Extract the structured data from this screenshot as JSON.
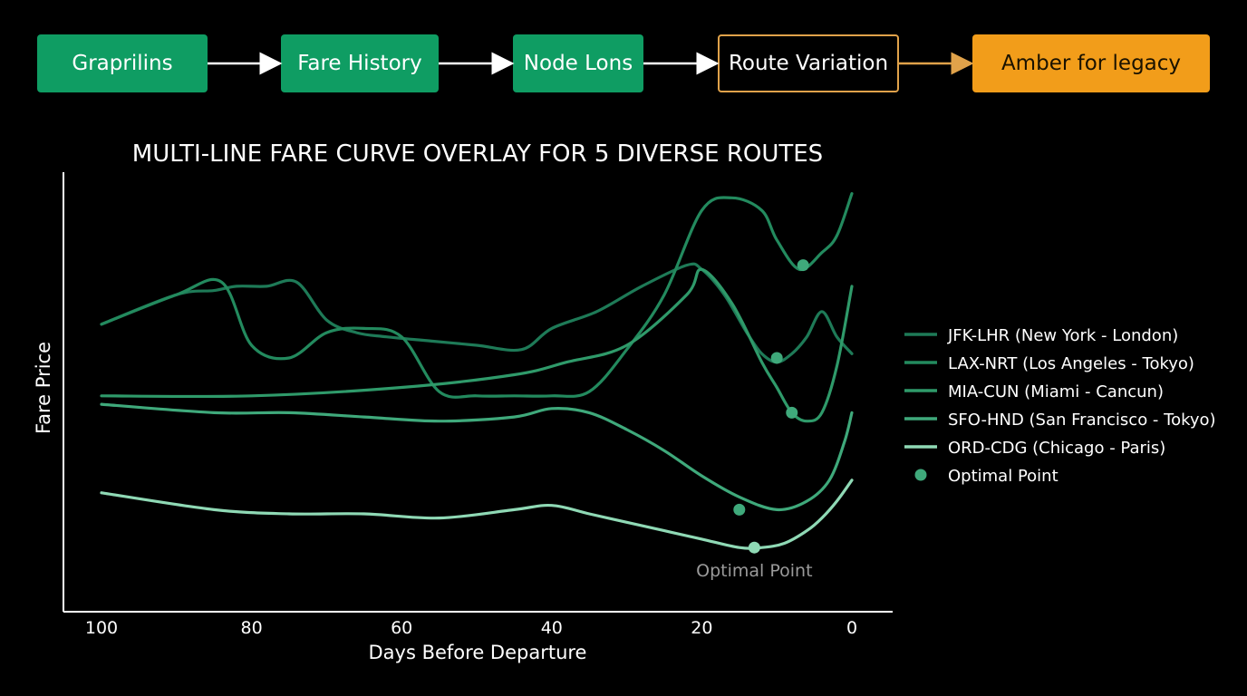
{
  "flow": {
    "nodes": [
      {
        "label": "Graprilins",
        "style": "green"
      },
      {
        "label": "Fare History",
        "style": "green"
      },
      {
        "label": "Node Lons",
        "style": "green"
      },
      {
        "label": "Route Variation",
        "style": "outline"
      },
      {
        "label": "Amber for legacy",
        "style": "amber"
      }
    ],
    "colors": {
      "green": "#0f9d63",
      "amber": "#f29d1a",
      "outline": "#e0a24a",
      "arrow": "#ffffff"
    }
  },
  "chart_data": {
    "type": "line",
    "title": "MULTI-LINE FARE CURVE OVERLAY FOR 5 DIVERSE ROUTES",
    "xlabel": "Days Before Departure",
    "ylabel": "Fare Price",
    "xlim": [
      100,
      0
    ],
    "ylim": [
      0,
      100
    ],
    "x_reversed": true,
    "xticks": [
      100,
      80,
      60,
      40,
      20,
      0
    ],
    "y_tick_labels_shown": false,
    "grid": false,
    "legend_position": "right",
    "annotation": {
      "text": "Optimal Point",
      "x": 13,
      "y": 12
    },
    "series": [
      {
        "name": "JFK-LHR (New York - London)",
        "color": "#1e7a57",
        "x": [
          100,
          90,
          85,
          82,
          78,
          74,
          70,
          66,
          62,
          56,
          50,
          44,
          40,
          34,
          28,
          22,
          20,
          17,
          14,
          12,
          10,
          8,
          6,
          4,
          2,
          0
        ],
        "y": [
          65,
          72,
          73,
          74,
          74,
          75,
          66,
          63,
          62,
          61,
          60,
          59,
          64,
          68,
          74,
          79,
          78,
          72,
          63,
          58,
          56,
          58,
          62,
          68,
          62,
          58
        ],
        "optimal": {
          "x": 10,
          "y": 57
        }
      },
      {
        "name": "LAX-NRT (Los Angeles - Tokyo)",
        "color": "#238a5e",
        "x": [
          100,
          90,
          84,
          80,
          75,
          70,
          65,
          60,
          55,
          50,
          45,
          40,
          35,
          30,
          25,
          20,
          16,
          12,
          10,
          7,
          4,
          2,
          0
        ],
        "y": [
          65,
          72,
          75,
          60,
          57,
          63,
          64,
          62,
          49,
          48,
          48,
          48,
          49,
          59,
          72,
          92,
          95,
          92,
          85,
          78,
          82,
          86,
          96
        ],
        "optimal": {
          "x": 6.5,
          "y": 79
        }
      },
      {
        "name": "MIA-CUN (Miami - Cancun)",
        "color": "#2f9a6a",
        "x": [
          100,
          80,
          60,
          45,
          38,
          30,
          22,
          20,
          16,
          12,
          10,
          8,
          6,
          4,
          2,
          0
        ],
        "y": [
          48,
          48,
          50,
          53,
          56,
          60,
          72,
          78,
          70,
          56,
          50,
          44,
          42,
          44,
          55,
          74
        ],
        "optimal": {
          "x": 8,
          "y": 44
        }
      },
      {
        "name": "SFO-HND (San Francisco - Tokyo)",
        "color": "#3fa97b",
        "x": [
          100,
          85,
          75,
          65,
          55,
          45,
          40,
          35,
          30,
          25,
          20,
          15,
          10,
          6,
          3,
          1,
          0
        ],
        "y": [
          46,
          44,
          44,
          43,
          42,
          43,
          45,
          44,
          40,
          35,
          29,
          24,
          21,
          23,
          28,
          37,
          44
        ],
        "optimal": {
          "x": 15,
          "y": 21
        }
      },
      {
        "name": "ORD-CDG (Chicago - Paris)",
        "color": "#8fd9b5",
        "x": [
          100,
          85,
          75,
          65,
          55,
          45,
          40,
          35,
          30,
          25,
          20,
          15,
          12,
          9,
          6,
          4,
          2,
          0
        ],
        "y": [
          25,
          21,
          20,
          20,
          19,
          21,
          22,
          20,
          18,
          16,
          14,
          12,
          12,
          13,
          16,
          19,
          23,
          28
        ],
        "optimal": {
          "x": 13,
          "y": 12
        }
      }
    ],
    "optimal_marker": {
      "label": "Optimal Point",
      "color": "#3fa97b"
    }
  }
}
